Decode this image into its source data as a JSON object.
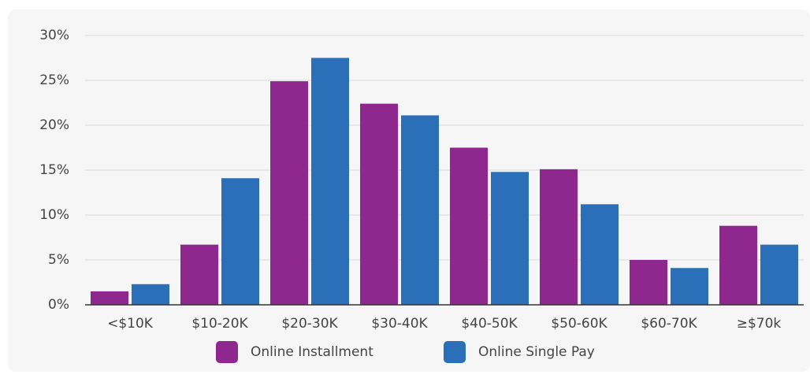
{
  "chart_data": {
    "type": "bar",
    "categories": [
      "<$10K",
      "$10-20K",
      "$20-30K",
      "$30-40K",
      "$40-50K",
      "$50-60K",
      "$60-70K",
      "≥$70k"
    ],
    "series": [
      {
        "name": "Online Installment",
        "color": "#8e278e",
        "values": [
          1.5,
          6.7,
          24.9,
          22.4,
          17.5,
          15.1,
          5.0,
          8.8
        ]
      },
      {
        "name": "Online Single Pay",
        "color": "#2a6fb8",
        "values": [
          2.3,
          14.1,
          27.5,
          21.1,
          14.8,
          11.2,
          4.1,
          6.7
        ]
      }
    ],
    "ylim": [
      0,
      30
    ],
    "yticks": [
      {
        "value": 0,
        "label": "0%"
      },
      {
        "value": 5,
        "label": "5%"
      },
      {
        "value": 10,
        "label": "10%"
      },
      {
        "value": 15,
        "label": "15%"
      },
      {
        "value": 20,
        "label": "20%"
      },
      {
        "value": 25,
        "label": "25%"
      },
      {
        "value": 30,
        "label": "30%"
      }
    ],
    "grid": true,
    "legend": "bottom"
  }
}
